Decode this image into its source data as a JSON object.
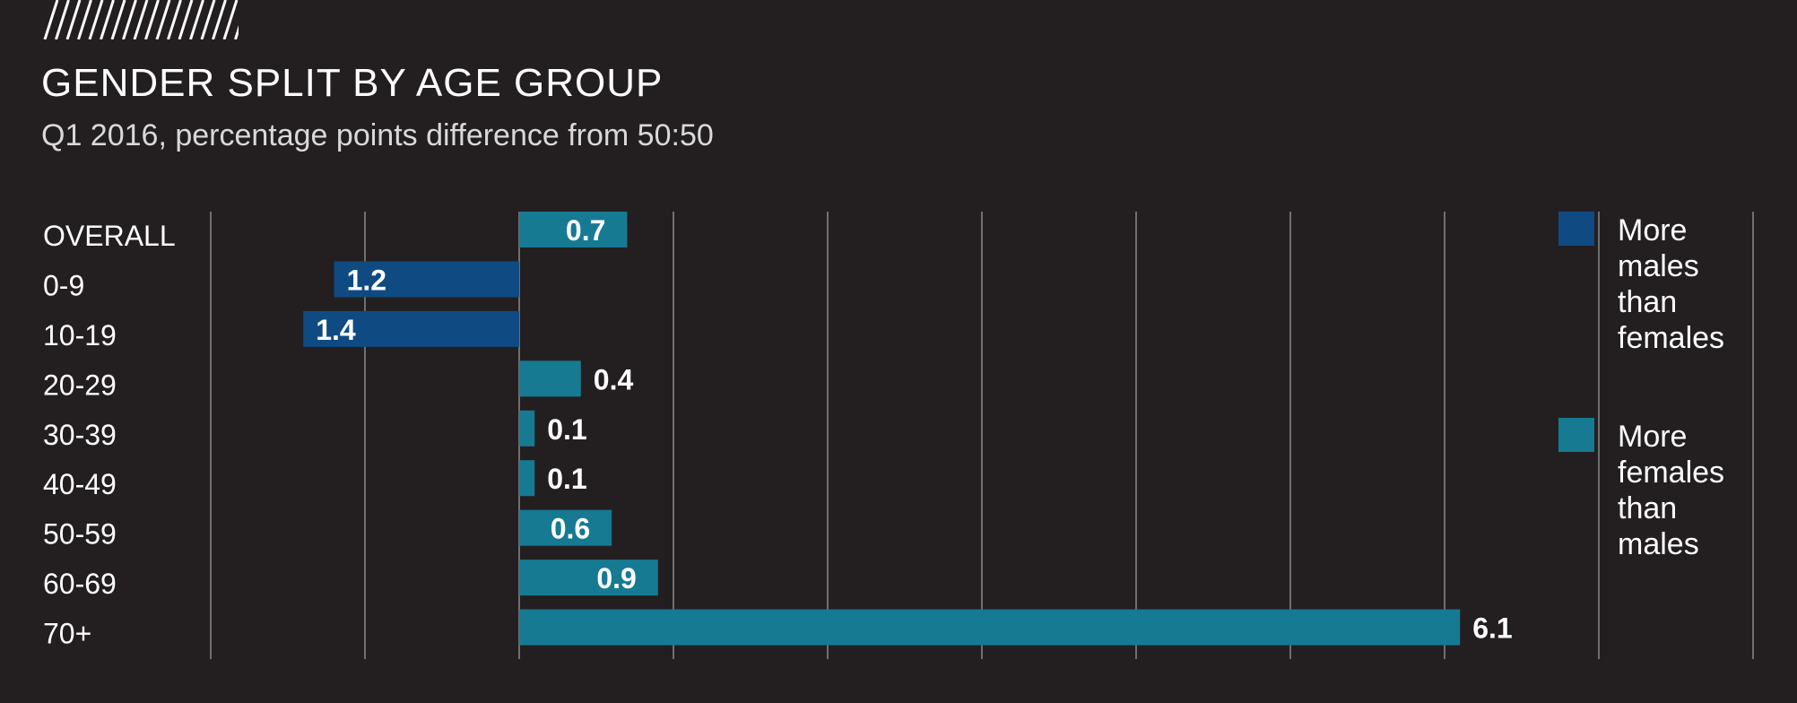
{
  "colors": {
    "background": "#231f20",
    "males": "#0f4b82",
    "females": "#177a93",
    "grid": "#8a8a8a",
    "text": "#ffffff"
  },
  "header": {
    "title": "GENDER SPLIT BY AGE GROUP",
    "subtitle": "Q1 2016, percentage points difference from 50:50"
  },
  "chart_data": {
    "type": "bar",
    "orientation": "horizontal",
    "title": "GENDER SPLIT BY AGE GROUP",
    "subtitle": "Q1 2016, percentage points difference from 50:50",
    "categories": [
      "OVERALL",
      "0-9",
      "10-19",
      "20-29",
      "30-39",
      "40-49",
      "50-59",
      "60-69",
      "70+"
    ],
    "values": [
      0.7,
      -1.2,
      -1.4,
      0.4,
      0.1,
      0.1,
      0.6,
      0.9,
      6.1
    ],
    "value_labels": [
      "0.7",
      "1.2",
      "1.4",
      "0.4",
      "0.1",
      "0.1",
      "0.6",
      "0.9",
      "6.1"
    ],
    "xlim": [
      -2,
      8
    ],
    "grid": true,
    "xlabel": "",
    "ylabel": "",
    "legend": {
      "placement": "right",
      "entries": [
        {
          "name": "More males than females",
          "lines": [
            "More",
            "males",
            "than",
            "females"
          ],
          "color": "#0f4b82"
        },
        {
          "name": "More females than males",
          "lines": [
            "More",
            "females",
            "than",
            "males"
          ],
          "color": "#177a93"
        }
      ]
    }
  }
}
